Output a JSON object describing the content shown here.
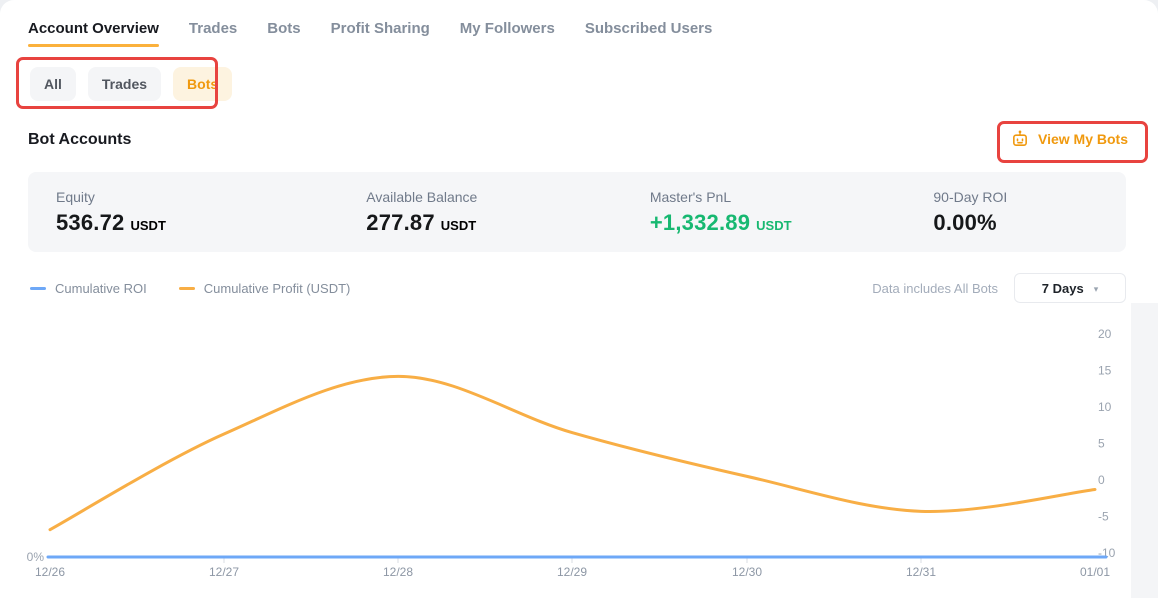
{
  "tabs": {
    "items": [
      {
        "label": "Account Overview",
        "active": true
      },
      {
        "label": "Trades",
        "active": false
      },
      {
        "label": "Bots",
        "active": false
      },
      {
        "label": "Profit Sharing",
        "active": false
      },
      {
        "label": "My Followers",
        "active": false
      },
      {
        "label": "Subscribed Users",
        "active": false
      }
    ]
  },
  "filters": {
    "items": [
      {
        "label": "All",
        "selected": false
      },
      {
        "label": "Trades",
        "selected": false
      },
      {
        "label": "Bots",
        "selected": true
      }
    ]
  },
  "section": {
    "title": "Bot Accounts",
    "view_my_bots_label": "View My Bots"
  },
  "stats": [
    {
      "label": "Equity",
      "value": "536.72",
      "unit": "USDT"
    },
    {
      "label": "Available Balance",
      "value": "277.87",
      "unit": "USDT"
    },
    {
      "label": "Master's PnL",
      "value": "+1,332.89",
      "unit": "USDT",
      "color": "#17b871"
    },
    {
      "label": "90-Day ROI",
      "value": "0.00%"
    }
  ],
  "legend": [
    {
      "label": "Cumulative ROI",
      "color": "#6ea8f7"
    },
    {
      "label": "Cumulative Profit (USDT)",
      "color": "#f8ae45"
    }
  ],
  "chart_controls": {
    "note": "Data includes All Bots",
    "range": "7 Days"
  },
  "chart_data": {
    "type": "line",
    "x": [
      "12/26",
      "12/27",
      "12/28",
      "12/29",
      "12/30",
      "12/31",
      "01/01"
    ],
    "series": [
      {
        "name": "Cumulative ROI",
        "axis": "left",
        "unit": "%",
        "color": "#6ea8f7",
        "values": [
          0,
          0,
          0,
          0,
          0,
          0,
          0
        ]
      },
      {
        "name": "Cumulative Profit (USDT)",
        "axis": "right",
        "unit": "USDT",
        "color": "#f8ae45",
        "values": [
          -6.8,
          6.3,
          14.2,
          6.5,
          0.5,
          -4.3,
          -1.3
        ]
      }
    ],
    "right_axis": {
      "ticks": [
        20,
        15,
        10,
        5,
        0,
        -5,
        -10
      ],
      "range": [
        -10,
        20
      ]
    },
    "left_axis": {
      "ticks": [
        "0%"
      ]
    },
    "legend_position": "top-left",
    "grid": false
  },
  "colors": {
    "accent_orange": "#f0990e",
    "tab_underline": "#fbb13c",
    "annotation_red": "#e8433f",
    "pnl_green": "#17b871",
    "line_blue": "#6ea8f7",
    "line_orange": "#f8ae45"
  }
}
